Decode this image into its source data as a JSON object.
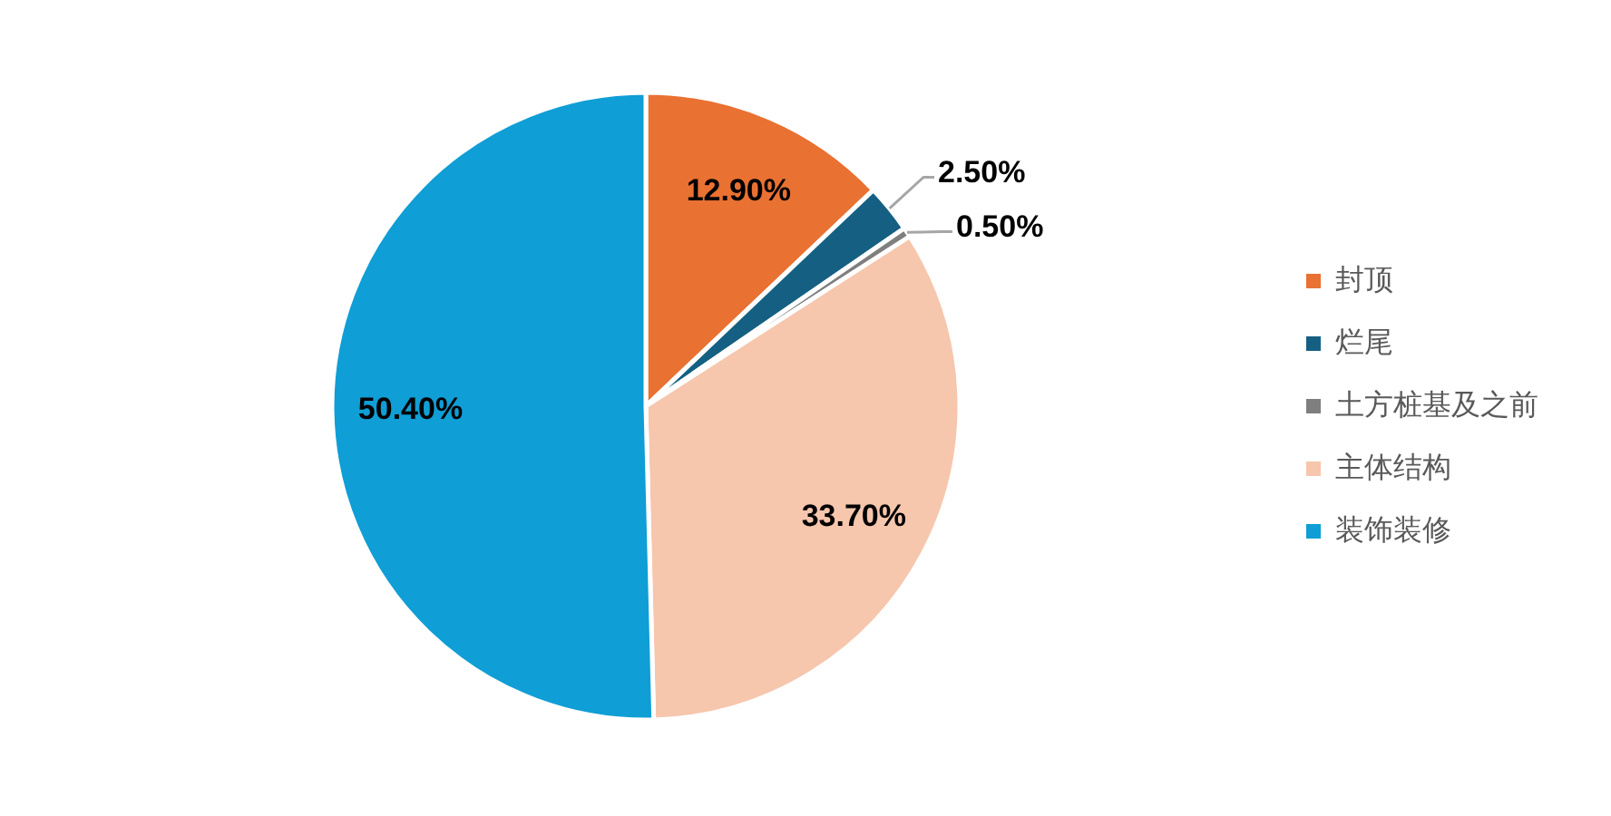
{
  "chart_data": {
    "type": "pie",
    "categories": [
      "封顶",
      "烂尾",
      "土方桩基及之前",
      "主体结构",
      "装饰装修"
    ],
    "values": [
      12.9,
      2.5,
      0.5,
      33.7,
      50.4
    ],
    "colors": [
      "#e97132",
      "#156082",
      "#7f7f7f",
      "#f6c6ad",
      "#0f9ed5"
    ],
    "value_labels": [
      "12.90%",
      "2.50%",
      "0.50%",
      "33.70%",
      "50.40%"
    ],
    "legend": "right"
  }
}
